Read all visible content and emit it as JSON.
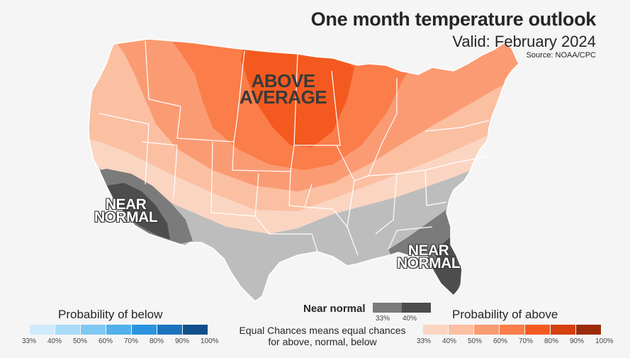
{
  "header": {
    "title": "One month temperature outlook",
    "subtitle": "Valid: February 2024",
    "source": "Source: NOAA/CPC"
  },
  "map_labels": {
    "above": [
      "ABOVE",
      "AVERAGE"
    ],
    "near_west": [
      "NEAR",
      "NORMAL"
    ],
    "near_east": [
      "NEAR",
      "NORMAL"
    ]
  },
  "legend": {
    "below": {
      "title": "Probability of below",
      "ticks": [
        "33%",
        "40%",
        "50%",
        "60%",
        "70%",
        "80%",
        "90%",
        "100%"
      ],
      "colors": [
        "#cfeafc",
        "#a9dbf8",
        "#7fc8f2",
        "#52b0ea",
        "#2a95de",
        "#1b73bd",
        "#114f8c"
      ]
    },
    "near": {
      "title": "Near normal",
      "ticks": [
        "33%",
        "40%"
      ],
      "colors": [
        "#7b7b7b",
        "#4d4d4d"
      ]
    },
    "above": {
      "title": "Probability of above",
      "ticks": [
        "33%",
        "40%",
        "50%",
        "60%",
        "70%",
        "80%",
        "90%",
        "100%"
      ],
      "colors": [
        "#fad5c2",
        "#fbbfa2",
        "#fb9b73",
        "#fa7d4a",
        "#f45a1f",
        "#d4400f",
        "#9c2b0b"
      ]
    },
    "note": "Equal Chances means equal chances for above, normal, below"
  },
  "map_colors": {
    "equal_chances": "#bdbdbd",
    "near_33": "#7b7b7b",
    "near_40": "#4d4d4d",
    "above_33": "#fad5c2",
    "above_40": "#fbbfa2",
    "above_50": "#fb9b73",
    "above_60": "#fa7d4a",
    "above_70": "#f45a1f",
    "state_lines": "#ffffff"
  }
}
